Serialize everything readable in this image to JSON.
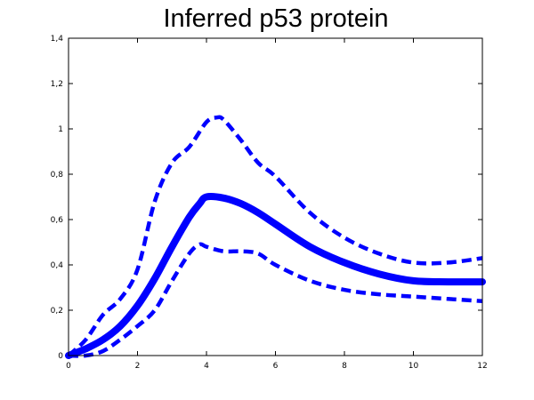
{
  "chart_data": {
    "type": "line",
    "title": "Inferred p53 protein",
    "xlabel": "",
    "ylabel": "",
    "xlim": [
      0,
      12
    ],
    "ylim": [
      0,
      1.4
    ],
    "x_ticks": [
      "0",
      "2",
      "4",
      "6",
      "8",
      "10",
      "12"
    ],
    "y_ticks": [
      "0",
      "0,2",
      "0,4",
      "0,6",
      "0,8",
      "1",
      "1,2",
      "1,4"
    ],
    "grid": false,
    "legend": "none",
    "color": "#0000ff",
    "series": [
      {
        "style": "solid",
        "x": [
          0,
          0.5,
          1,
          1.5,
          2,
          2.5,
          3,
          3.5,
          3.8,
          4,
          4.5,
          5,
          5.5,
          6,
          7,
          8,
          9,
          10,
          11,
          12
        ],
        "y": [
          0,
          0.03,
          0.07,
          0.13,
          0.22,
          0.34,
          0.48,
          0.61,
          0.67,
          0.7,
          0.695,
          0.67,
          0.63,
          0.58,
          0.48,
          0.41,
          0.36,
          0.33,
          0.325,
          0.325
        ]
      },
      {
        "style": "dashed",
        "x": [
          0,
          0.5,
          1,
          1.5,
          2,
          2.5,
          3,
          3.5,
          4,
          4.3,
          4.5,
          5,
          5.5,
          6,
          7,
          8,
          9,
          10,
          11,
          12
        ],
        "y": [
          0,
          0.07,
          0.18,
          0.25,
          0.38,
          0.68,
          0.85,
          0.92,
          1.03,
          1.05,
          1.04,
          0.95,
          0.85,
          0.79,
          0.63,
          0.52,
          0.45,
          0.41,
          0.41,
          0.43
        ]
      },
      {
        "style": "dashed",
        "x": [
          0,
          0.5,
          1,
          1.5,
          2,
          2.5,
          3,
          3.5,
          3.8,
          4,
          4.5,
          5,
          5.5,
          6,
          7,
          8,
          9,
          10,
          11,
          12
        ],
        "y": [
          0,
          0.0,
          0.02,
          0.07,
          0.13,
          0.2,
          0.33,
          0.45,
          0.49,
          0.48,
          0.46,
          0.46,
          0.45,
          0.4,
          0.33,
          0.29,
          0.27,
          0.26,
          0.25,
          0.24
        ]
      }
    ]
  }
}
